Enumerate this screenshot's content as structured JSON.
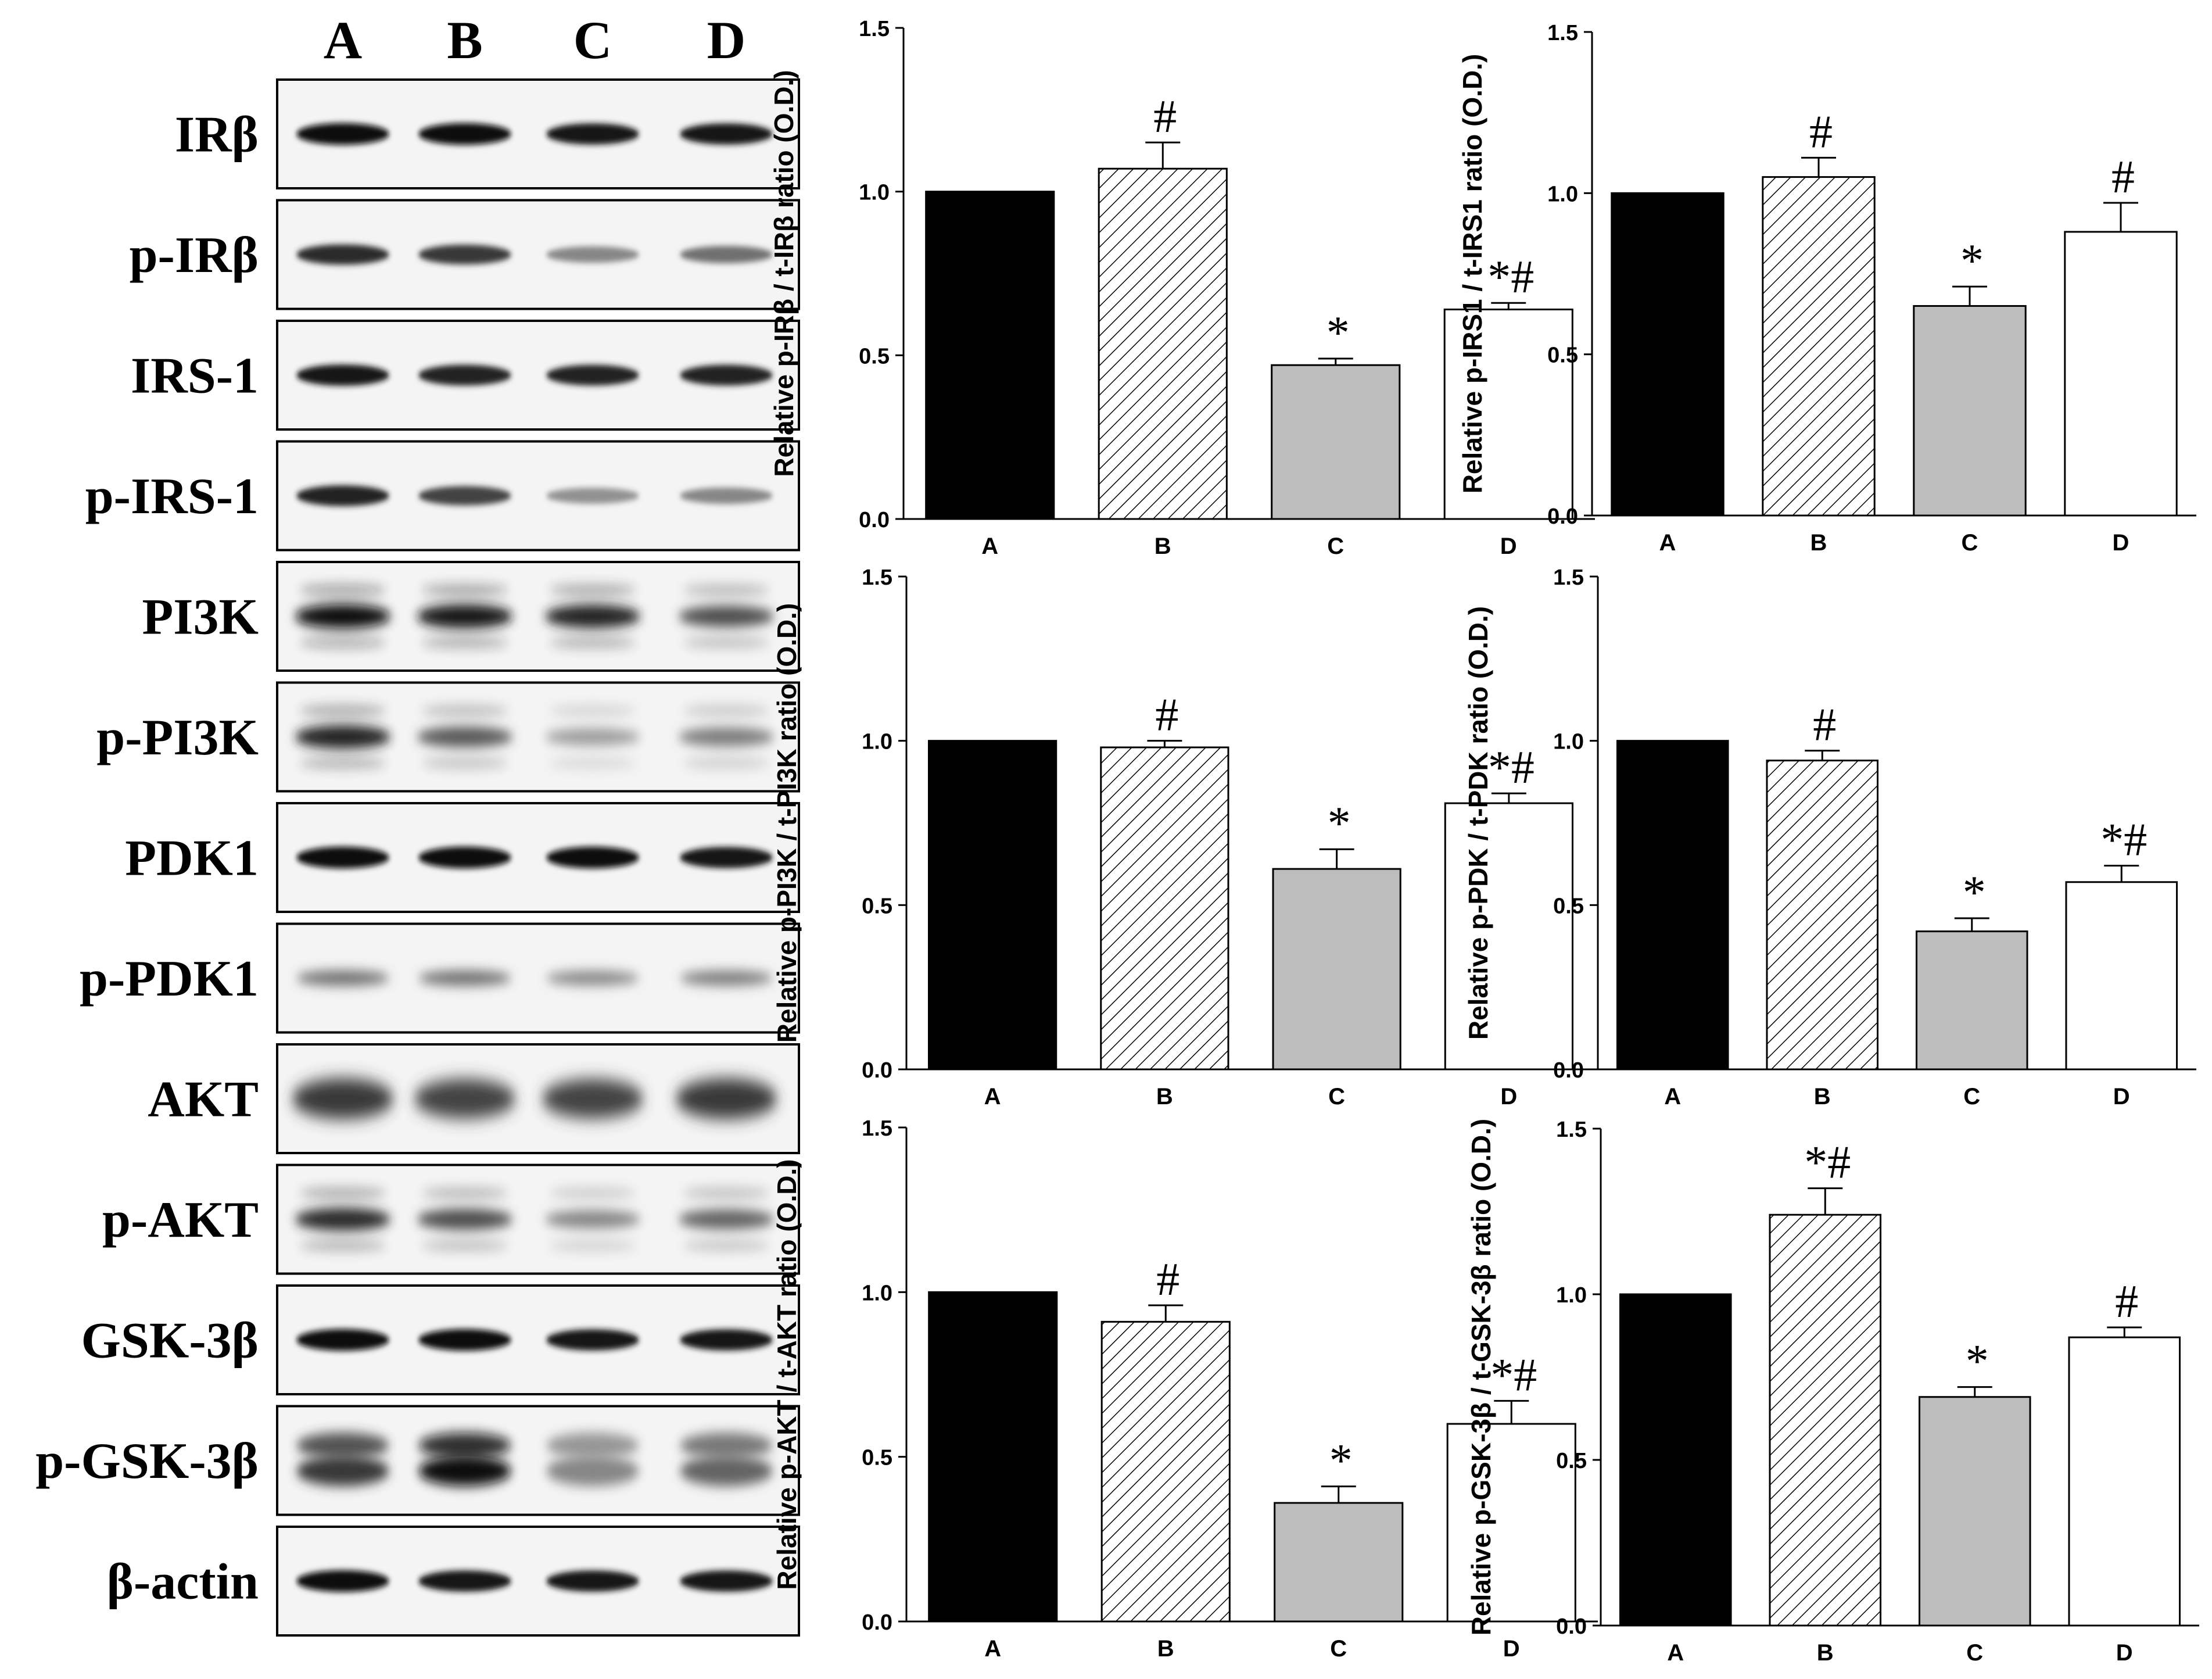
{
  "lanes": [
    "A",
    "B",
    "C",
    "D"
  ],
  "blots": [
    {
      "label": "IRβ",
      "bands": [
        1.0,
        1.0,
        0.95,
        0.95
      ],
      "style": "sharp"
    },
    {
      "label": "p-IRβ",
      "bands": [
        0.85,
        0.8,
        0.45,
        0.55
      ],
      "style": "sharp"
    },
    {
      "label": "IRS-1",
      "bands": [
        0.95,
        0.9,
        0.9,
        0.9
      ],
      "style": "sharp"
    },
    {
      "label": "p-IRS-1",
      "bands": [
        0.9,
        0.75,
        0.4,
        0.45
      ],
      "style": "sharp"
    },
    {
      "label": "PI3K",
      "bands": [
        1.0,
        0.95,
        0.9,
        0.7
      ],
      "style": "smear"
    },
    {
      "label": "p-PI3K",
      "bands": [
        0.9,
        0.65,
        0.35,
        0.5
      ],
      "style": "smear"
    },
    {
      "label": "PDK1",
      "bands": [
        1.0,
        1.0,
        1.0,
        0.95
      ],
      "style": "sharp"
    },
    {
      "label": "p-PDK1",
      "bands": [
        0.55,
        0.55,
        0.45,
        0.5
      ],
      "style": "faint"
    },
    {
      "label": "AKT",
      "bands": [
        0.8,
        0.75,
        0.75,
        0.8
      ],
      "style": "diffuse"
    },
    {
      "label": "p-AKT",
      "bands": [
        0.85,
        0.7,
        0.45,
        0.6
      ],
      "style": "smear"
    },
    {
      "label": "GSK-3β",
      "bands": [
        1.0,
        1.0,
        0.95,
        0.95
      ],
      "style": "sharp"
    },
    {
      "label": "p-GSK-3β",
      "bands": [
        0.8,
        1.0,
        0.45,
        0.6
      ],
      "style": "double"
    },
    {
      "label": "β-actin",
      "bands": [
        1.0,
        0.95,
        0.95,
        0.95
      ],
      "style": "sharp"
    }
  ],
  "chart_data": [
    {
      "type": "bar",
      "ylabel": "Relative p-IRβ / t-IRβ ratio (O.D.)",
      "categories": [
        "A",
        "B",
        "C",
        "D"
      ],
      "values": [
        1.0,
        1.07,
        0.47,
        0.64
      ],
      "errors": [
        0.0,
        0.08,
        0.02,
        0.02
      ],
      "annotations": [
        "",
        "#",
        "*",
        "*#"
      ],
      "ylim": [
        0,
        1.5
      ],
      "yticks": [
        "0.0",
        "0.5",
        "1.0",
        "1.5"
      ]
    },
    {
      "type": "bar",
      "ylabel": "Relative p-IRS1 / t-IRS1 ratio (O.D.)",
      "categories": [
        "A",
        "B",
        "C",
        "D"
      ],
      "values": [
        1.0,
        1.05,
        0.65,
        0.88
      ],
      "errors": [
        0.0,
        0.06,
        0.06,
        0.09
      ],
      "annotations": [
        "",
        "#",
        "*",
        "#"
      ],
      "ylim": [
        0,
        1.5
      ],
      "yticks": [
        "0.0",
        "0.5",
        "1.0",
        "1.5"
      ]
    },
    {
      "type": "bar",
      "ylabel": "Relative p-PI3K / t-PI3K ratio (O.D.)",
      "categories": [
        "A",
        "B",
        "C",
        "D"
      ],
      "values": [
        1.0,
        0.98,
        0.61,
        0.81
      ],
      "errors": [
        0.0,
        0.02,
        0.06,
        0.03
      ],
      "annotations": [
        "",
        "#",
        "*",
        "*#"
      ],
      "ylim": [
        0,
        1.5
      ],
      "yticks": [
        "0.0",
        "0.5",
        "1.0",
        "1.5"
      ]
    },
    {
      "type": "bar",
      "ylabel": "Relative p-PDK / t-PDK ratio (O.D.)",
      "categories": [
        "A",
        "B",
        "C",
        "D"
      ],
      "values": [
        1.0,
        0.94,
        0.42,
        0.57
      ],
      "errors": [
        0.0,
        0.03,
        0.04,
        0.05
      ],
      "annotations": [
        "",
        "#",
        "*",
        "*#"
      ],
      "ylim": [
        0,
        1.5
      ],
      "yticks": [
        "0.0",
        "0.5",
        "1.0",
        "1.5"
      ]
    },
    {
      "type": "bar",
      "ylabel": "Relative p-AKT / t-AKT ratio (O.D.)",
      "categories": [
        "A",
        "B",
        "C",
        "D"
      ],
      "values": [
        1.0,
        0.91,
        0.36,
        0.6
      ],
      "errors": [
        0.0,
        0.05,
        0.05,
        0.07
      ],
      "annotations": [
        "",
        "#",
        "*",
        "*#"
      ],
      "ylim": [
        0,
        1.5
      ],
      "yticks": [
        "0.0",
        "0.5",
        "1.0",
        "1.5"
      ]
    },
    {
      "type": "bar",
      "ylabel": "Relative p-GSK-3β / t-GSK-3β ratio (O.D.)",
      "categories": [
        "A",
        "B",
        "C",
        "D"
      ],
      "values": [
        1.0,
        1.24,
        0.69,
        0.87
      ],
      "errors": [
        0.0,
        0.08,
        0.03,
        0.03
      ],
      "annotations": [
        "",
        "*#",
        "*",
        "#"
      ],
      "ylim": [
        0,
        1.5
      ],
      "yticks": [
        "0.0",
        "0.5",
        "1.0",
        "1.5"
      ]
    }
  ]
}
